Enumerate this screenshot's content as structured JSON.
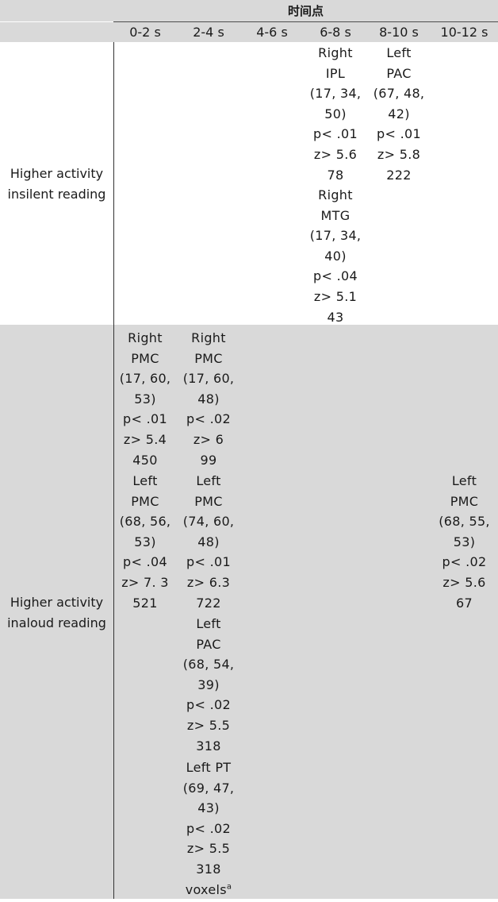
{
  "header": {
    "group_title": "时间点",
    "columns": [
      "0-2 s",
      "2-4 s",
      "4-6 s",
      "6-8 s",
      "8-10 s",
      "10-12 s"
    ]
  },
  "rows": [
    {
      "label_lines": [
        "Higher activity",
        "insilent reading"
      ],
      "cells": {
        "c68_a": [
          "Right",
          "IPL",
          "(17,  34,",
          "50)",
          "p<  .01",
          "z>  5.6",
          "78"
        ],
        "c68_b": [
          "Right",
          "MTG",
          "(17,  34,",
          "40)",
          "p<  .04",
          "z>  5.1",
          "43"
        ],
        "c810_a": [
          "Left",
          "PAC",
          "(67,  48,",
          "42)",
          "p<  .01",
          "z>  5.8",
          "222"
        ]
      }
    },
    {
      "label_lines": [
        "Higher activity",
        "inaloud reading"
      ],
      "cells": {
        "c02_a": [
          "Right",
          "PMC",
          "(17,  60,",
          "53)",
          "p<  .01",
          "z>  5.4",
          "450"
        ],
        "c02_b": [
          "Left",
          "PMC",
          "(68,  56,",
          "53)",
          "p<  .04",
          "z>    7. 3",
          "521"
        ],
        "c24_a": [
          "Right",
          "PMC",
          "(17,  60,",
          "48)",
          "p<  .02",
          "z>  6",
          "99"
        ],
        "c24_b": [
          "Left",
          "PMC",
          "(74,  60,",
          "48)",
          "p<  .01",
          "z>  6.3",
          "722"
        ],
        "c24_c": [
          "Left",
          "PAC",
          "(68,  54,",
          "39)",
          "p<  .02",
          "z>  5.5",
          "318"
        ],
        "c24_d": [
          "Left  PT",
          "(69,  47,",
          "43)",
          "p<  .02",
          "z>  5.5",
          "318"
        ],
        "c24_d_last": "voxels",
        "c24_d_sup": "a",
        "c1012_a": [
          "Left",
          "PMC",
          "(68,  55,",
          "53)",
          "p<  .02",
          "z>  5.6",
          "67"
        ]
      }
    }
  ]
}
